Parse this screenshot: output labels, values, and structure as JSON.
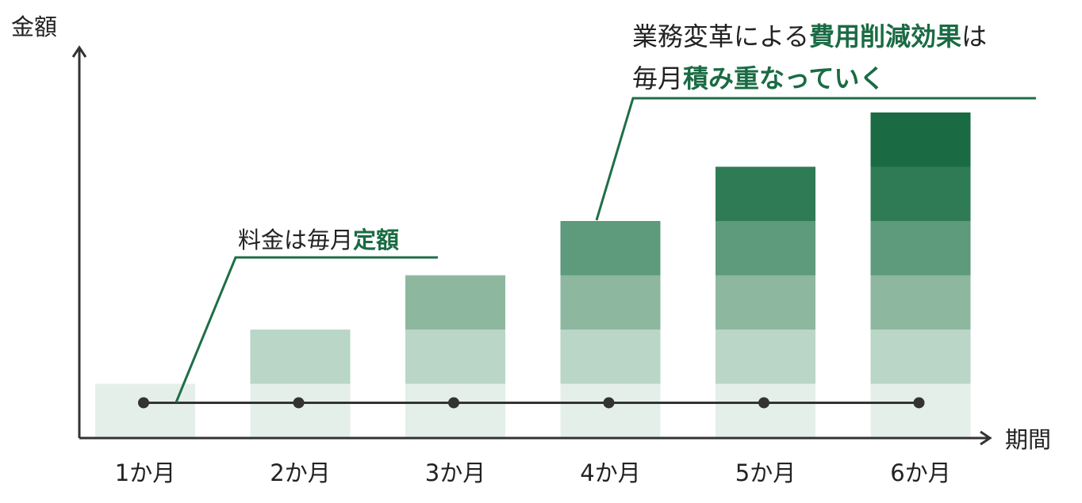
{
  "chart_data": {
    "type": "bar",
    "stacked": true,
    "ylabel": "金額",
    "xlabel": "期間",
    "categories": [
      "1か月",
      "2か月",
      "3か月",
      "4か月",
      "5か月",
      "6か月"
    ],
    "segments": [
      {
        "color": "#e5efe9"
      },
      {
        "color": "#b9d6c7"
      },
      {
        "color": "#8eb7a0"
      },
      {
        "color": "#5e9a7c"
      },
      {
        "color": "#2f7b56"
      },
      {
        "color": "#1a6b43"
      }
    ],
    "values": [
      1,
      2,
      3,
      4,
      5,
      6
    ],
    "fee_line": {
      "level": 0.65,
      "color": "#333333"
    },
    "ylim": [
      0,
      6.5
    ],
    "annotations": {
      "fee": {
        "parts": [
          {
            "text": "料金は毎月",
            "emphasis": false
          },
          {
            "text": "定額",
            "emphasis": true
          }
        ]
      },
      "savings": {
        "lines": [
          [
            {
              "text": "業務変革による",
              "emphasis": false
            },
            {
              "text": "費用削減効果",
              "emphasis": true
            },
            {
              "text": "は",
              "emphasis": false
            }
          ],
          [
            {
              "text": "毎月",
              "emphasis": false
            },
            {
              "text": "積み重なっていく",
              "emphasis": true
            }
          ]
        ]
      }
    },
    "colors": {
      "axis": "#333333",
      "text": "#222222",
      "accent": "#1a6b43",
      "leader": "#1f6e47"
    }
  }
}
